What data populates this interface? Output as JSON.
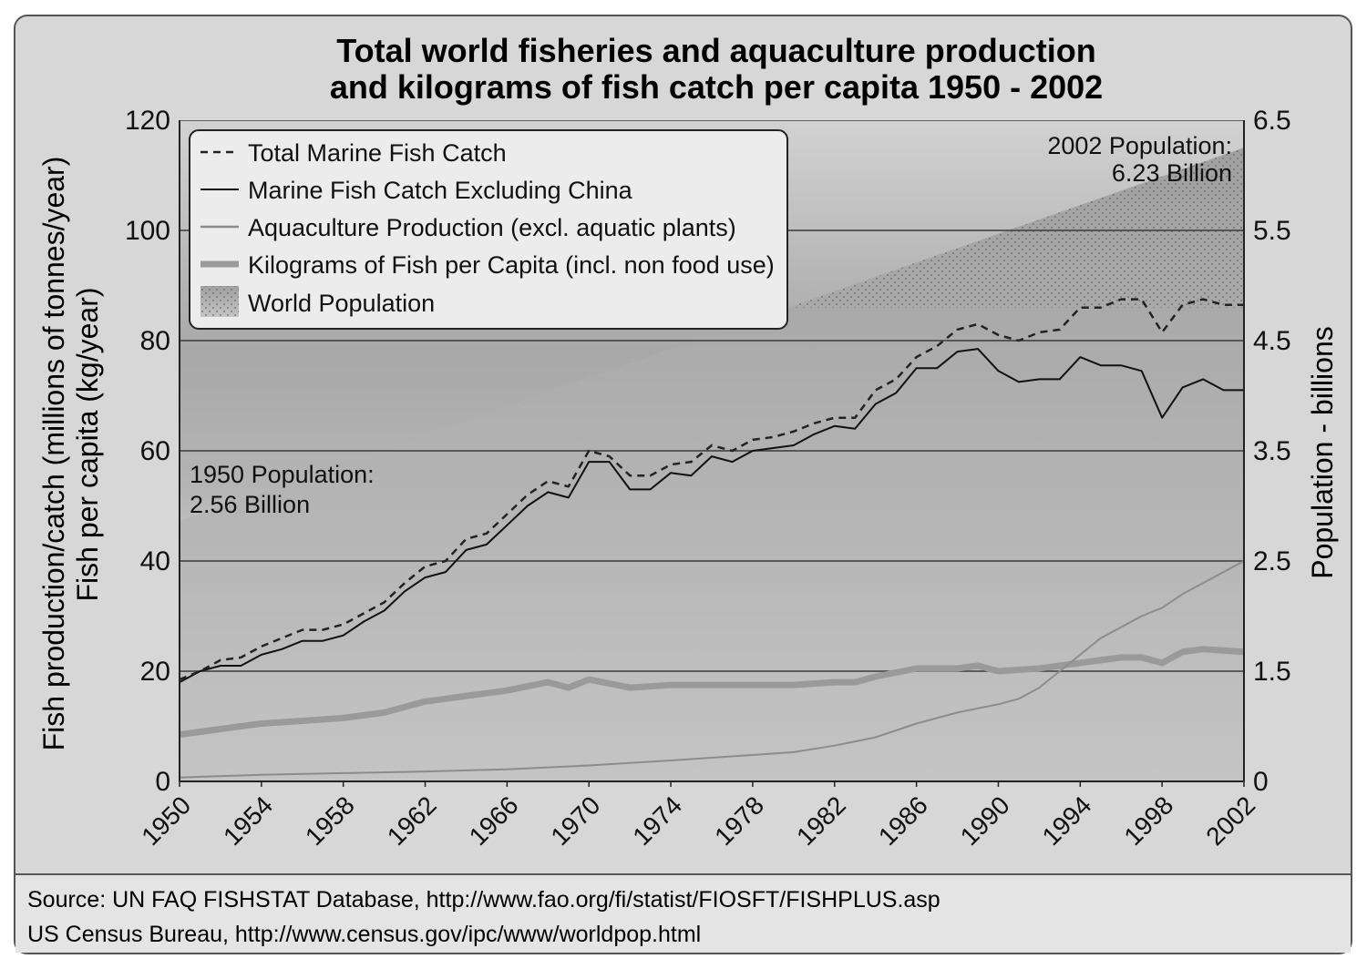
{
  "chart_data": {
    "type": "line",
    "title": "Total world fisheries and aquaculture production",
    "subtitle": "and kilograms of fish catch per capita 1950 - 2002",
    "ylabel_left_line1": "Fish production/catch (millions of tonnes/year)",
    "ylabel_left_line2": "Fish per capita (kg/year)",
    "ylabel_right": "Population - billions",
    "xlim": [
      1950,
      2002
    ],
    "ylim_left": [
      0,
      120
    ],
    "ylim_right": [
      0,
      6.5
    ],
    "yticks_left": [
      "0",
      "20",
      "40",
      "60",
      "80",
      "100",
      "120"
    ],
    "yticks_right": [
      "0",
      "1.5",
      "2.5",
      "3.5",
      "4.5",
      "5.5",
      "6.5"
    ],
    "xticks": [
      "1950",
      "1954",
      "1958",
      "1962",
      "1966",
      "1970",
      "1974",
      "1978",
      "1982",
      "1986",
      "1990",
      "1994",
      "1998",
      "2002"
    ],
    "grid": true,
    "legend_position": "top-left",
    "legend": [
      "Total Marine Fish Catch",
      "Marine Fish Catch Excluding China",
      "Aquaculture Production (excl. aquatic plants)",
      "Kilograms of Fish per Capita (incl. non food use)",
      "World Population"
    ],
    "annotations": {
      "pop_1950_line1": "1950 Population:",
      "pop_1950_line2": "2.56 Billion",
      "pop_2002_line1": "2002 Population:",
      "pop_2002_line2": "6.23 Billion"
    },
    "population": {
      "x": [
        1950,
        2002
      ],
      "values": [
        2.56,
        6.23
      ]
    },
    "series": [
      {
        "name": "Total Marine Fish Catch",
        "color": "#222222",
        "style": "dashed",
        "x": [
          1950,
          1951,
          1952,
          1953,
          1954,
          1955,
          1956,
          1957,
          1958,
          1959,
          1960,
          1961,
          1962,
          1963,
          1964,
          1965,
          1966,
          1967,
          1968,
          1969,
          1970,
          1971,
          1972,
          1973,
          1974,
          1975,
          1976,
          1977,
          1978,
          1979,
          1980,
          1981,
          1982,
          1983,
          1984,
          1985,
          1986,
          1987,
          1988,
          1989,
          1990,
          1991,
          1992,
          1993,
          1994,
          1995,
          1996,
          1997,
          1998,
          1999,
          2000,
          2001,
          2002
        ],
        "values": [
          18.5,
          20,
          22,
          22.5,
          24.5,
          26,
          27.5,
          27.5,
          28.5,
          30.5,
          32.5,
          36,
          39,
          40,
          44,
          45,
          48.5,
          52,
          54.5,
          53.5,
          60,
          59,
          55.5,
          55.5,
          57.5,
          58,
          61,
          60,
          62,
          62.5,
          63.5,
          65,
          66,
          66,
          71,
          73,
          77,
          79,
          82,
          83,
          81,
          80,
          81.5,
          82,
          86,
          86,
          87.5,
          87.5,
          81.5,
          86.5,
          87.5,
          86.5,
          86.5
        ]
      },
      {
        "name": "Marine Fish Catch Excluding China",
        "color": "#111111",
        "style": "solid",
        "x": [
          1950,
          1951,
          1952,
          1953,
          1954,
          1955,
          1956,
          1957,
          1958,
          1959,
          1960,
          1961,
          1962,
          1963,
          1964,
          1965,
          1966,
          1967,
          1968,
          1969,
          1970,
          1971,
          1972,
          1973,
          1974,
          1975,
          1976,
          1977,
          1978,
          1979,
          1980,
          1981,
          1982,
          1983,
          1984,
          1985,
          1986,
          1987,
          1988,
          1989,
          1990,
          1991,
          1992,
          1993,
          1994,
          1995,
          1996,
          1997,
          1998,
          1999,
          2000,
          2001,
          2002
        ],
        "values": [
          18,
          20,
          21,
          21,
          23,
          24,
          25.5,
          25.5,
          26.5,
          29,
          31,
          34.5,
          37,
          38,
          42,
          43,
          46.5,
          50,
          52.5,
          51.5,
          58,
          58,
          53,
          53,
          56,
          55.5,
          59,
          58,
          60,
          60.5,
          61,
          63,
          64.5,
          64,
          68.5,
          70.5,
          75,
          75,
          78,
          78.5,
          74.5,
          72.5,
          73,
          73,
          77,
          75.5,
          75.5,
          74.5,
          66,
          71.5,
          73,
          71,
          71
        ]
      },
      {
        "name": "Aquaculture Production (excl. aquatic plants)",
        "color": "#8c8c8c",
        "style": "solid",
        "x": [
          1950,
          1954,
          1958,
          1962,
          1966,
          1970,
          1974,
          1978,
          1980,
          1982,
          1984,
          1986,
          1988,
          1990,
          1991,
          1992,
          1993,
          1994,
          1995,
          1996,
          1997,
          1998,
          1999,
          2000,
          2001,
          2002
        ],
        "values": [
          0.7,
          1.2,
          1.5,
          1.8,
          2.2,
          2.9,
          3.8,
          4.8,
          5.3,
          6.5,
          8,
          10.5,
          12.5,
          14,
          15,
          17,
          20,
          23,
          26,
          28,
          30,
          31.5,
          34,
          36,
          38,
          40
        ]
      },
      {
        "name": "Kilograms of Fish per Capita (incl. non food use)",
        "color": "#9a9a9a",
        "style": "thick",
        "x": [
          1950,
          1952,
          1954,
          1956,
          1958,
          1960,
          1962,
          1963,
          1964,
          1965,
          1966,
          1968,
          1969,
          1970,
          1972,
          1974,
          1976,
          1978,
          1980,
          1982,
          1983,
          1984,
          1986,
          1988,
          1989,
          1990,
          1992,
          1994,
          1996,
          1997,
          1998,
          1999,
          2000,
          2002
        ],
        "values": [
          8.5,
          9.5,
          10.5,
          11,
          11.5,
          12.5,
          14.5,
          15,
          15.5,
          16,
          16.5,
          18,
          17,
          18.5,
          17,
          17.5,
          17.5,
          17.5,
          17.5,
          18,
          18,
          19,
          20.5,
          20.5,
          21,
          20,
          20.5,
          21.5,
          22.5,
          22.5,
          21.5,
          23.5,
          24,
          23.5
        ]
      }
    ]
  },
  "footer": {
    "source_line1": "Source: UN FAQ FISHSTAT Database, http://www.fao.org/fi/statist/FIOSFT/FISHPLUS.asp",
    "source_line2": "US Census Bureau, http://www.census.gov/ipc/www/worldpop.html"
  },
  "colors": {
    "frame_bg": "#d6d6d6",
    "plot_top": "#9e9e9e",
    "plot_bottom": "#f6f6f6",
    "population_fill": "#bdbdbd"
  }
}
